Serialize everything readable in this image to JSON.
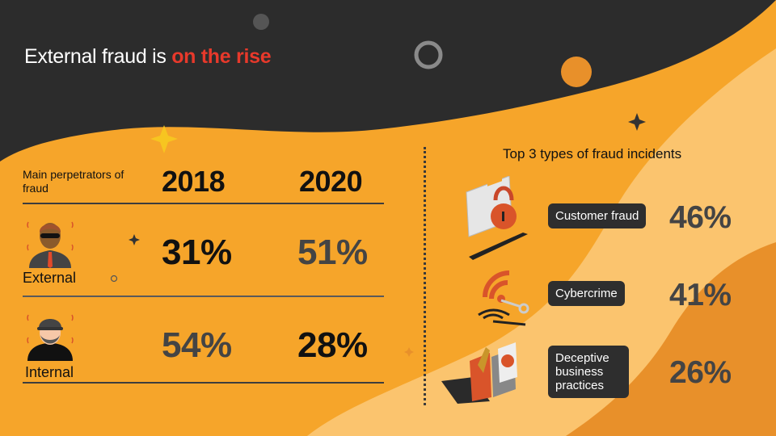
{
  "title": {
    "prefix": "External fraud is ",
    "highlight": "on the rise"
  },
  "perpetrators": {
    "header_label": "Main perpetrators of fraud",
    "years": [
      "2018",
      "2020"
    ],
    "rows": [
      {
        "label": "External",
        "values": [
          "31%",
          "51%"
        ]
      },
      {
        "label": "Internal",
        "values": [
          "54%",
          "28%"
        ]
      }
    ]
  },
  "incidents": {
    "title": "Top 3 types of fraud incidents",
    "items": [
      {
        "label": "Customer fraud",
        "value": "46%",
        "icon": "credit-card-lock-icon"
      },
      {
        "label": "Cybercrime",
        "value": "41%",
        "icon": "wifi-key-icon"
      },
      {
        "label": "Deceptive business practices",
        "value": "26%",
        "icon": "trojan-horse-box-icon"
      }
    ]
  },
  "colors": {
    "dark": "#2d2d2d",
    "orange": "#f6a52a",
    "light_orange": "#fbc46e",
    "deep_orange": "#e8902a",
    "accent_red": "#e8392b"
  }
}
